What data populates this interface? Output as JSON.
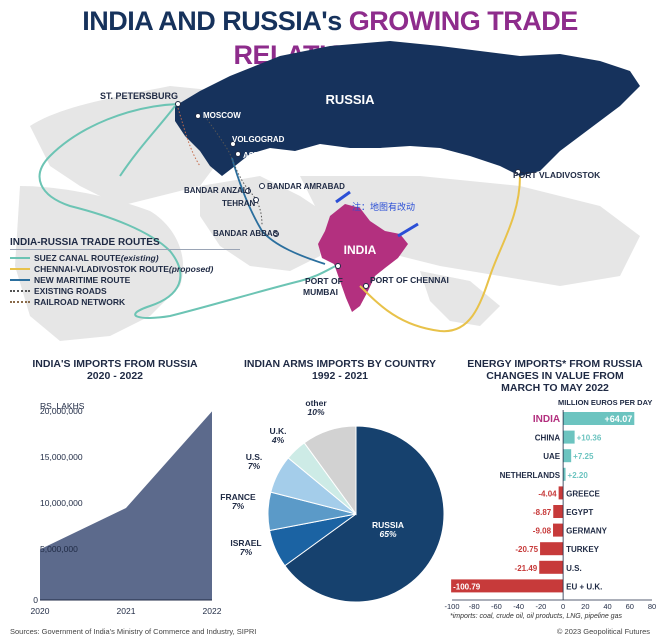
{
  "title": {
    "part1": "INDIA AND RUSSIA's ",
    "part2": "GROWING ",
    "part3": "TRADE RELATIONSHIP"
  },
  "map": {
    "labels": {
      "russia": "RUSSIA",
      "india": "INDIA",
      "st_petersburg": "ST. PETERSBURG",
      "moscow": "MOSCOW",
      "volgograd": "VOLGOGRAD",
      "astrakhan": "ASTRAKHAN",
      "bandar_anzali": "BANDAR ANZALI",
      "bandar_amrabad": "BANDAR AMRABAD",
      "tehran": "TEHRAN",
      "bandar_abbas": "BANDAR ABBAS",
      "port_mumbai_1": "PORT OF",
      "port_mumbai_2": "MUMBAI",
      "port_chennai": "PORT OF CHENNAI",
      "port_vladivostok": "PORT VLADIVOSTOK",
      "annotation": "注：地图有改动"
    },
    "colors": {
      "russia": "#16325c",
      "india": "#b3307f",
      "land": "#e8e8e8",
      "suez": "#6cc4b4",
      "chennai": "#e8c24a",
      "maritime": "#2b6f9e"
    }
  },
  "legend": {
    "title": "INDIA-RUSSIA TRADE ROUTES",
    "items": [
      {
        "label": "SUEZ CANAL ROUTE ",
        "suffix": "(existing)",
        "color": "#6cc4b4",
        "style": "solid"
      },
      {
        "label": "CHENNAI-VLADIVOSTOK ROUTE ",
        "suffix": "(proposed)",
        "color": "#e8c24a",
        "style": "solid"
      },
      {
        "label": "NEW MARITIME ROUTE",
        "suffix": "",
        "color": "#2b6f9e",
        "style": "solid"
      },
      {
        "label": "EXISTING ROADS",
        "suffix": "",
        "color": "#555555",
        "style": "dotted"
      },
      {
        "label": "RAILROAD NETWORK",
        "suffix": "",
        "color": "#8a6b4a",
        "style": "dotted"
      }
    ]
  },
  "imports_chart": {
    "title_line1": "INDIA'S IMPORTS FROM RUSSIA",
    "title_line2": "2020 - 2022",
    "unit_label": "RS. LAKHS",
    "color": "#5c6a8c"
  },
  "arms_chart": {
    "title_line1": "INDIAN ARMS IMPORTS BY COUNTRY",
    "title_line2": "1992 - 2021"
  },
  "energy_chart": {
    "title_line1": "ENERGY IMPORTS* FROM RUSSIA",
    "title_line2": "CHANGES IN VALUE FROM",
    "title_line3": "MARCH TO MAY 2022",
    "unit_label": "MILLION EUROS PER DAY",
    "footnote": "*imports: coal, crude oil, oil products, LNG, pipeline gas"
  },
  "chart_data": [
    {
      "type": "area",
      "title": "INDIA'S IMPORTS FROM RUSSIA 2020 - 2022",
      "ylabel": "RS. LAKHS",
      "x": [
        2020,
        2021,
        2022
      ],
      "values": [
        5500000,
        10000000,
        20500000
      ],
      "ylim": [
        0,
        20000000
      ],
      "yticks": [
        0,
        5000000,
        10000000,
        15000000,
        20000000
      ],
      "ytick_labels": [
        "0",
        "5,000,000",
        "10,000,000",
        "15,000,000",
        "20,000,000"
      ],
      "xtick_labels": [
        "2020",
        "2021",
        "2022"
      ],
      "grid": false
    },
    {
      "type": "pie",
      "title": "INDIAN ARMS IMPORTS BY COUNTRY 1992 - 2021",
      "slices": [
        {
          "label": "RUSSIA",
          "value": 65,
          "pct": "65%",
          "color": "#16416e"
        },
        {
          "label": "ISRAEL",
          "value": 7,
          "pct": "7%",
          "color": "#1b63a3"
        },
        {
          "label": "FRANCE",
          "value": 7,
          "pct": "7%",
          "color": "#5b9ac8"
        },
        {
          "label": "U.S.",
          "value": 7,
          "pct": "7%",
          "color": "#a4cdea"
        },
        {
          "label": "U.K.",
          "value": 4,
          "pct": "4%",
          "color": "#cdebe6"
        },
        {
          "label": "other",
          "value": 10,
          "pct": "10%",
          "color": "#d2d2d2"
        }
      ]
    },
    {
      "type": "bar",
      "orientation": "horizontal",
      "title": "ENERGY IMPORTS* FROM RUSSIA CHANGES IN VALUE FROM MARCH TO MAY 2022",
      "xlabel": "MILLION EUROS PER DAY",
      "categories": [
        "INDIA",
        "CHINA",
        "UAE",
        "NETHERLANDS",
        "GREECE",
        "EGYPT",
        "GERMANY",
        "TURKEY",
        "U.S.",
        "EU + U.K."
      ],
      "values": [
        64.07,
        10.36,
        7.25,
        2.2,
        -4.04,
        -8.87,
        -9.08,
        -20.75,
        -21.49,
        -100.79
      ],
      "value_labels": [
        "+64.07",
        "+10.36",
        "+7.25",
        "+2.20",
        "-4.04",
        "-8.87",
        "-9.08",
        "-20.75",
        "-21.49",
        "-100.79"
      ],
      "xlim": [
        -100,
        80
      ],
      "xticks": [
        -100,
        -80,
        -60,
        -40,
        -20,
        0,
        20,
        40,
        60,
        80
      ],
      "positive_color": "#6cc4c0",
      "negative_color": "#c73a3a"
    }
  ],
  "footer": {
    "sources": "Sources: Government of India's Ministry of Commerce and Industry, SIPRI",
    "copyright": "© 2023 Geopolitical Futures"
  }
}
